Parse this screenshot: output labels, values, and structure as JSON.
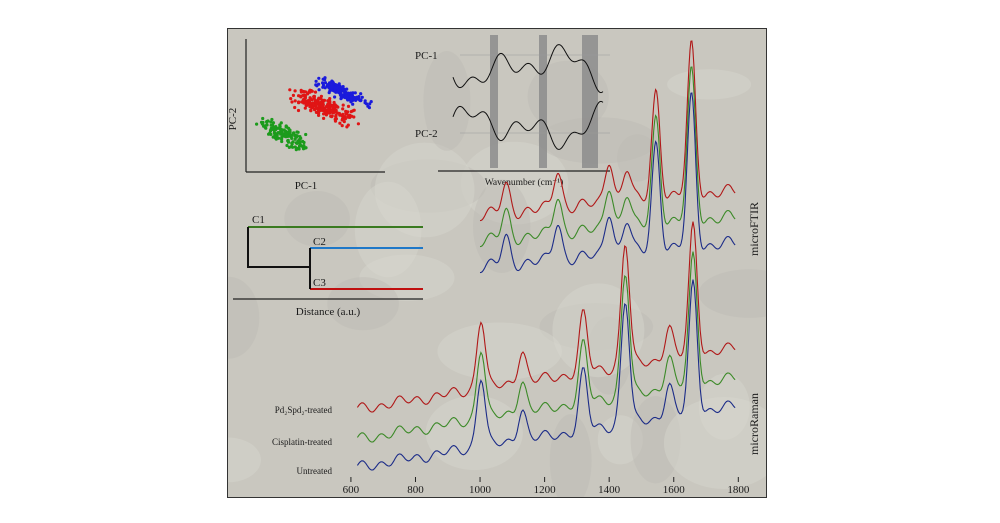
{
  "figure": {
    "scatter": {
      "xlabel": "PC-1",
      "ylabel": "PC-2",
      "colors": {
        "untreated": "#1a1adc",
        "pd": "#e01515",
        "cisplatin": "#1c9b1c"
      }
    },
    "loadings": {
      "series": [
        "PC-1",
        "PC-2"
      ],
      "xlabel": "Wavenumber (cm⁻¹)"
    },
    "dendrogram": {
      "clusters": [
        "C1",
        "C2",
        "C3"
      ],
      "colors": [
        "#3a7a20",
        "#1f78c8",
        "#c01010"
      ],
      "xlabel": "Distance (a.u.)"
    },
    "spectra": {
      "ftir_label": "microFTIR",
      "raman_label": "microRaman",
      "series_labels": [
        "Pd₂Spd₂-treated",
        "Cisplatin-treated",
        "Untreated"
      ],
      "series_colors": [
        "#b01818",
        "#3c8a28",
        "#1c2c88"
      ]
    }
  },
  "chart_data": [
    {
      "type": "scatter",
      "xlabel": "PC-1",
      "ylabel": "PC-2",
      "series": [
        {
          "name": "",
          "color": "#1a1adc",
          "group": "untreated"
        },
        {
          "name": "",
          "color": "#e01515",
          "group": "pd"
        },
        {
          "name": "",
          "color": "#1c9b1c",
          "group": "cisplatin"
        }
      ]
    },
    {
      "type": "line",
      "xlabel": "Wavenumber (cm⁻¹)",
      "series": [
        {
          "name": "PC-1"
        },
        {
          "name": "PC-2"
        }
      ]
    },
    {
      "type": "line",
      "x_ticks": [
        600,
        800,
        1000,
        1200,
        1400,
        1600,
        1800
      ],
      "xlim": [
        560,
        1830
      ],
      "ftir": {
        "label": "microFTIR",
        "peaks": [
          {
            "x": 1080,
            "h": 0.18
          },
          {
            "x": 1240,
            "h": 0.25
          },
          {
            "x": 1400,
            "h": 0.3
          },
          {
            "x": 1455,
            "h": 0.22
          },
          {
            "x": 1545,
            "h": 0.72
          },
          {
            "x": 1655,
            "h": 1.0
          }
        ]
      },
      "raman": {
        "label": "microRaman",
        "peaks": [
          {
            "x": 1003,
            "h": 0.55
          },
          {
            "x": 1130,
            "h": 0.25
          },
          {
            "x": 1320,
            "h": 0.45
          },
          {
            "x": 1450,
            "h": 0.95
          },
          {
            "x": 1585,
            "h": 0.25
          },
          {
            "x": 1660,
            "h": 1.0
          }
        ]
      },
      "series": [
        {
          "name": "Pd₂Spd₂-treated",
          "color": "#b01818"
        },
        {
          "name": "Cisplatin-treated",
          "color": "#3c8a28"
        },
        {
          "name": "Untreated",
          "color": "#1c2c88"
        }
      ]
    }
  ]
}
